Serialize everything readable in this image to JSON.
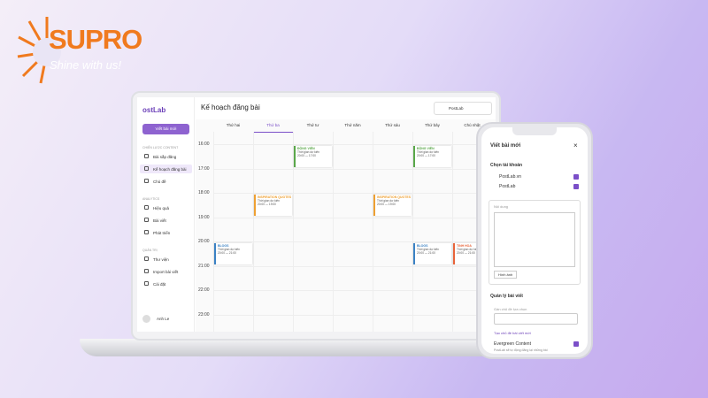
{
  "brand": {
    "name": "SUPRO",
    "slogan": "Shine with us!"
  },
  "app": {
    "logo": "ostLab",
    "page_title": "Kế hoạch đăng bài",
    "account": "PostLab",
    "sidebar": {
      "new_post": "Viết bài mới",
      "groups": [
        {
          "title": "CHIẾN LƯỢC CONTENT",
          "items": [
            "Bài sắp đăng",
            "Kế hoạch đăng bài",
            "Chủ đề"
          ]
        },
        {
          "title": "ANALYTICS",
          "items": [
            "Hiệu quả",
            "Bài viết",
            "Phát triển"
          ]
        },
        {
          "title": "QUẢN TRỊ",
          "items": [
            "Thư viện",
            "Import bài viết",
            "Cài đặt"
          ]
        }
      ],
      "user": "Anh Le"
    },
    "calendar": {
      "days": [
        "Thứ hai",
        "Thứ ba",
        "Thứ tư",
        "Thứ năm",
        "Thứ sáu",
        "Thứ bảy",
        "Chủ nhật"
      ],
      "hours": [
        "16:00",
        "17:00",
        "18:00",
        "19:00",
        "20:00",
        "21:00",
        "22:00",
        "23:00"
      ],
      "events": [
        {
          "title": "ĐỘNG VIÊN",
          "label": "Thời gian dự kiến",
          "time": "20:00 — 17:00"
        },
        {
          "title": "ĐỘNG VIÊN",
          "label": "Thời gian dự kiến",
          "time": "20:00 — 17:00"
        },
        {
          "title": "INSPIRATION QUOTES",
          "label": "Thời gian dự kiến",
          "time": "20:00 — 19:00"
        },
        {
          "title": "INSPIRATION QUOTES",
          "label": "Thời gian dự kiến",
          "time": "20:00 — 19:00"
        },
        {
          "title": "BLOGS",
          "label": "Thời gian dự kiến",
          "time": "20:00 — 21:00"
        },
        {
          "title": "BLOGS",
          "label": "Thời gian dự kiến",
          "time": "20:00 — 21:00"
        },
        {
          "title": "TINH HOA",
          "label": "Thời gian dự kiến",
          "time": "20:00 — 21:00"
        }
      ]
    }
  },
  "phone": {
    "title": "Viết bài mới",
    "close": "×",
    "account_heading": "Chọn tài khoản",
    "accounts": [
      "PostLab.vn",
      "PostLab"
    ],
    "content_label": "Nội dung",
    "image_button": "Hình ảnh",
    "manage_heading": "Quản lý bài viết",
    "topic_placeholder": "Gán chủ đề lựa chọn",
    "new_topic": "Tạo chủ đề bài viết mới",
    "evergreen": "Evergreen Content",
    "evergreen_note": "PostLab sẽ tự động đăng lại những bài"
  }
}
